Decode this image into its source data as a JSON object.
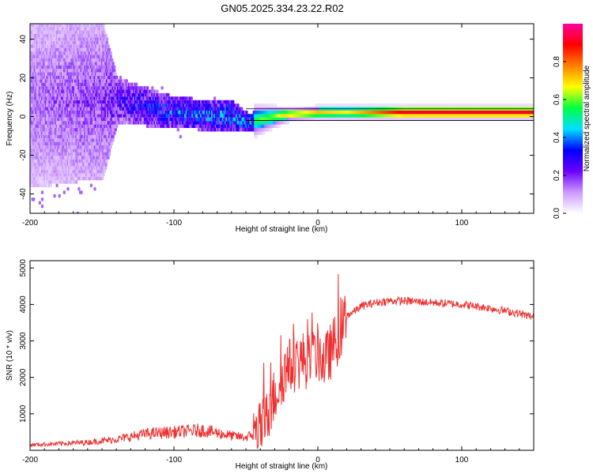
{
  "figure": {
    "title": "GN05.2025.334.23.22.R02"
  },
  "chart_data": [
    {
      "type": "heatmap",
      "title": "",
      "xlabel": "Height of straight line (km)",
      "ylabel": "Frequency (Hz)",
      "xlim": [
        -200,
        150
      ],
      "ylim": [
        -50,
        48
      ],
      "xticks": [
        -200,
        -100,
        0,
        100
      ],
      "xtick_labels": [
        "-200",
        "-100",
        "0",
        "100"
      ],
      "yticks": [
        -40,
        -20,
        0,
        20,
        40
      ],
      "ytick_labels": [
        "-40",
        "-20",
        "0",
        "20",
        "40"
      ],
      "reference_lines_y": [
        -2,
        4
      ],
      "colorbar": {
        "label": "Normalized spectral amplitude",
        "range": [
          0,
          1
        ],
        "ticks": [
          0.0,
          0.2,
          0.4,
          0.6,
          0.8
        ],
        "tick_labels": [
          "0.0",
          "0.2",
          "0.4",
          "0.6",
          "0.8"
        ],
        "colormap": [
          "#ffffff",
          "#cc99ff",
          "#6a00ff",
          "#0000ff",
          "#00e0ff",
          "#00ff40",
          "#ffff00",
          "#ff8000",
          "#ff0000",
          "#ff00a0"
        ]
      },
      "description_profile": {
        "height_km": [
          -200,
          -150,
          -140,
          -100,
          -60,
          -50,
          -30,
          -20,
          0,
          20,
          60,
          100,
          150
        ],
        "center_frequency_hz": [
          8,
          8,
          8,
          2,
          0,
          -3,
          0,
          1,
          2,
          2,
          2,
          2,
          2
        ],
        "frequency_spread_hz": [
          45,
          40,
          12,
          8,
          8,
          5,
          3,
          2,
          2,
          2,
          2,
          2,
          2
        ],
        "peak_amplitude": [
          0.2,
          0.25,
          0.35,
          0.5,
          0.55,
          0.55,
          0.65,
          0.75,
          0.75,
          0.7,
          0.95,
          0.95,
          0.95
        ]
      }
    },
    {
      "type": "line",
      "title": "",
      "xlabel": "Height of straight line (km)",
      "ylabel": "SNR (10 * v/v)",
      "xlim": [
        -200,
        150
      ],
      "ylim": [
        0,
        5200
      ],
      "xticks": [
        -200,
        -100,
        0,
        100
      ],
      "xtick_labels": [
        "-200",
        "-100",
        "0",
        "100"
      ],
      "yticks": [
        1000,
        2000,
        3000,
        4000,
        5000
      ],
      "ytick_labels": [
        "1000",
        "2000",
        "3000",
        "4000",
        "5000"
      ],
      "line_color": "#ef3030",
      "series": [
        {
          "name": "SNR",
          "x": [
            -200,
            -180,
            -160,
            -140,
            -120,
            -100,
            -80,
            -60,
            -50,
            -40,
            -35,
            -30,
            -25,
            -20,
            -15,
            -10,
            -5,
            0,
            5,
            10,
            15,
            20,
            25,
            30,
            40,
            50,
            60,
            80,
            100,
            120,
            140,
            150
          ],
          "y": [
            150,
            180,
            220,
            300,
            450,
            500,
            550,
            400,
            350,
            550,
            900,
            1500,
            2000,
            2300,
            2400,
            2500,
            2400,
            2700,
            2400,
            2800,
            3200,
            3700,
            3800,
            3950,
            4050,
            4100,
            4100,
            4050,
            4000,
            3900,
            3750,
            3650
          ]
        }
      ]
    }
  ]
}
